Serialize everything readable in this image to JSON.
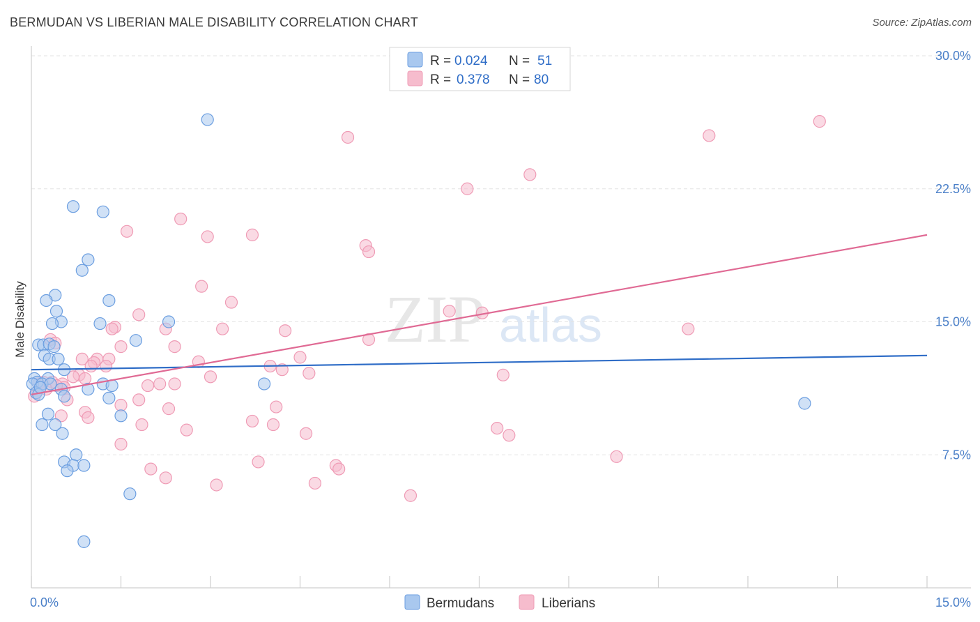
{
  "title": "BERMUDAN VS LIBERIAN MALE DISABILITY CORRELATION CHART",
  "source": "Source: ZipAtlas.com",
  "watermark": {
    "zip": "ZIP",
    "atlas": "atlas"
  },
  "colors": {
    "blue_fill": "#a9c8ef",
    "blue_stroke": "#6b9ee0",
    "blue_line": "#2f6dc7",
    "pink_fill": "#f6bccd",
    "pink_stroke": "#ef9bb5",
    "pink_line": "#e06a94",
    "grid": "#e3e3e3",
    "axis": "#cfcfcf",
    "tick_text": "#4a7fc8"
  },
  "legend": {
    "rows": [
      {
        "series": "Bermudans",
        "r_label": "R = ",
        "r_value": "0.024",
        "n_label": "N = ",
        "n_value": "51"
      },
      {
        "series": "Liberians",
        "r_label": "R = ",
        "r_value": "0.378",
        "n_label": "N = ",
        "n_value": "80"
      }
    ]
  },
  "chart_data": {
    "type": "scatter",
    "title": "BERMUDAN VS LIBERIAN MALE DISABILITY CORRELATION CHART",
    "xlabel": "",
    "ylabel": "Male Disability",
    "xlim": [
      0,
      15
    ],
    "ylim": [
      0,
      30
    ],
    "x_tick_labels": [
      {
        "value": 0,
        "label": "0.0%"
      },
      {
        "value": 15,
        "label": "15.0%"
      }
    ],
    "y_ticks": [
      {
        "value": 7.5,
        "label": "7.5%"
      },
      {
        "value": 15,
        "label": "15.0%"
      },
      {
        "value": 22.5,
        "label": "22.5%"
      },
      {
        "value": 30,
        "label": "30.0%"
      }
    ],
    "x_minor_ticks": [
      0,
      1.5,
      3,
      4.5,
      6,
      7.5,
      9,
      10.5,
      12,
      13.5,
      15
    ],
    "series": [
      {
        "name": "Bermudans",
        "color": "blue",
        "r": 0.024,
        "n": 51,
        "trendline": {
          "x": [
            0,
            15
          ],
          "y": [
            12.3,
            13.1
          ]
        },
        "points": [
          [
            2.95,
            26.4
          ],
          [
            0.7,
            21.5
          ],
          [
            1.2,
            21.2
          ],
          [
            0.95,
            18.5
          ],
          [
            0.85,
            17.9
          ],
          [
            0.4,
            16.5
          ],
          [
            0.25,
            16.2
          ],
          [
            1.3,
            16.2
          ],
          [
            0.42,
            15.6
          ],
          [
            0.5,
            15.0
          ],
          [
            0.35,
            14.9
          ],
          [
            1.15,
            14.9
          ],
          [
            2.3,
            15.0
          ],
          [
            1.75,
            13.95
          ],
          [
            0.12,
            13.7
          ],
          [
            0.2,
            13.7
          ],
          [
            0.3,
            13.75
          ],
          [
            0.38,
            13.6
          ],
          [
            0.22,
            13.1
          ],
          [
            0.3,
            12.9
          ],
          [
            0.45,
            12.9
          ],
          [
            0.55,
            12.3
          ],
          [
            0.05,
            11.8
          ],
          [
            0.28,
            11.8
          ],
          [
            0.1,
            11.6
          ],
          [
            0.02,
            11.5
          ],
          [
            0.18,
            11.5
          ],
          [
            0.32,
            11.5
          ],
          [
            1.2,
            11.5
          ],
          [
            1.35,
            11.4
          ],
          [
            0.5,
            11.2
          ],
          [
            0.95,
            11.2
          ],
          [
            0.08,
            11.0
          ],
          [
            0.12,
            10.9
          ],
          [
            0.55,
            10.8
          ],
          [
            1.3,
            10.7
          ],
          [
            3.9,
            11.5
          ],
          [
            1.5,
            9.7
          ],
          [
            0.28,
            9.8
          ],
          [
            0.4,
            9.2
          ],
          [
            0.18,
            9.2
          ],
          [
            0.52,
            8.7
          ],
          [
            0.75,
            7.5
          ],
          [
            0.55,
            7.1
          ],
          [
            0.7,
            6.9
          ],
          [
            0.88,
            6.9
          ],
          [
            0.6,
            6.6
          ],
          [
            1.65,
            5.3
          ],
          [
            0.88,
            2.6
          ],
          [
            12.95,
            10.4
          ],
          [
            0.15,
            11.3
          ]
        ]
      },
      {
        "name": "Liberians",
        "color": "pink",
        "r": 0.378,
        "n": 80,
        "trendline": {
          "x": [
            0,
            15
          ],
          "y": [
            10.9,
            19.9
          ]
        },
        "points": [
          [
            13.2,
            26.3
          ],
          [
            5.3,
            25.4
          ],
          [
            11.35,
            25.5
          ],
          [
            8.35,
            23.3
          ],
          [
            7.3,
            22.5
          ],
          [
            2.5,
            20.8
          ],
          [
            1.6,
            20.1
          ],
          [
            2.95,
            19.8
          ],
          [
            3.7,
            19.9
          ],
          [
            5.6,
            19.3
          ],
          [
            5.65,
            18.95
          ],
          [
            2.85,
            17.0
          ],
          [
            3.35,
            16.1
          ],
          [
            7.0,
            15.6
          ],
          [
            7.55,
            15.5
          ],
          [
            1.8,
            15.4
          ],
          [
            1.4,
            14.7
          ],
          [
            1.35,
            14.6
          ],
          [
            2.25,
            14.6
          ],
          [
            3.2,
            14.6
          ],
          [
            4.25,
            14.5
          ],
          [
            11.0,
            14.6
          ],
          [
            5.65,
            14.0
          ],
          [
            0.32,
            14.0
          ],
          [
            0.4,
            13.8
          ],
          [
            1.5,
            13.6
          ],
          [
            2.4,
            13.6
          ],
          [
            4.5,
            13.0
          ],
          [
            0.85,
            12.9
          ],
          [
            1.1,
            12.9
          ],
          [
            1.3,
            12.9
          ],
          [
            1.05,
            12.7
          ],
          [
            1.25,
            12.5
          ],
          [
            2.8,
            12.75
          ],
          [
            1.0,
            12.5
          ],
          [
            4.0,
            12.5
          ],
          [
            4.2,
            12.3
          ],
          [
            4.65,
            12.1
          ],
          [
            7.9,
            12.0
          ],
          [
            3.0,
            11.9
          ],
          [
            0.8,
            12.0
          ],
          [
            0.7,
            11.9
          ],
          [
            0.9,
            11.8
          ],
          [
            0.12,
            11.5
          ],
          [
            0.2,
            11.6
          ],
          [
            0.35,
            11.6
          ],
          [
            0.52,
            11.5
          ],
          [
            1.95,
            11.4
          ],
          [
            2.15,
            11.5
          ],
          [
            2.4,
            11.5
          ],
          [
            0.55,
            11.3
          ],
          [
            0.08,
            11.0
          ],
          [
            0.05,
            10.8
          ],
          [
            0.6,
            10.6
          ],
          [
            1.8,
            10.6
          ],
          [
            1.5,
            10.3
          ],
          [
            4.1,
            10.2
          ],
          [
            2.3,
            10.1
          ],
          [
            0.9,
            9.9
          ],
          [
            0.5,
            9.7
          ],
          [
            0.95,
            9.6
          ],
          [
            1.85,
            9.2
          ],
          [
            3.7,
            9.4
          ],
          [
            4.05,
            9.2
          ],
          [
            8.0,
            8.6
          ],
          [
            4.6,
            8.7
          ],
          [
            2.6,
            8.9
          ],
          [
            7.8,
            9.0
          ],
          [
            1.5,
            8.1
          ],
          [
            9.8,
            7.4
          ],
          [
            3.8,
            7.1
          ],
          [
            5.1,
            6.9
          ],
          [
            5.15,
            6.7
          ],
          [
            2.0,
            6.7
          ],
          [
            2.25,
            6.2
          ],
          [
            3.1,
            5.8
          ],
          [
            4.75,
            5.9
          ],
          [
            6.35,
            5.2
          ],
          [
            0.42,
            11.4
          ],
          [
            0.25,
            11.2
          ]
        ]
      }
    ]
  }
}
